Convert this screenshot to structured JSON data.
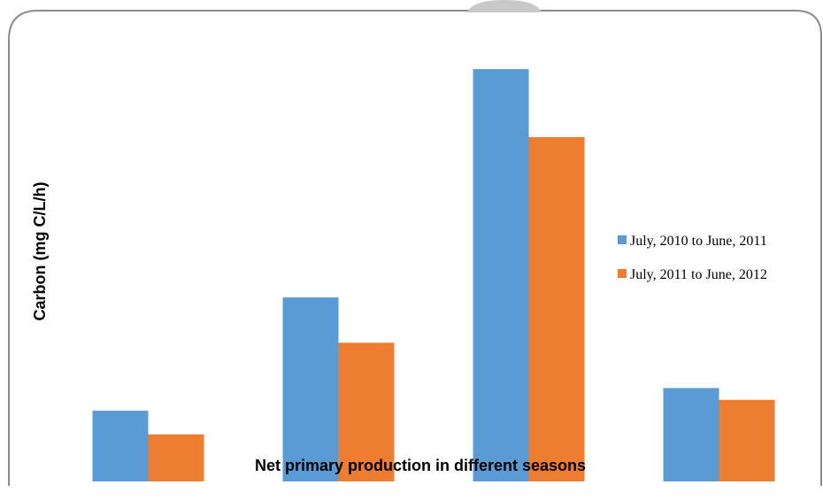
{
  "chart_data": {
    "type": "bar",
    "categories": [
      "",
      "",
      "",
      ""
    ],
    "series": [
      {
        "name": "July, 2010 to June, 2011",
        "values": [
          78,
          203,
          455,
          103
        ],
        "color": "#5b9bd5"
      },
      {
        "name": "July, 2011 to June, 2012",
        "values": [
          52,
          153,
          380,
          90
        ],
        "color": "#ed7d31"
      }
    ],
    "title": "",
    "xlabel": "Net primary production in different seasons",
    "ylabel": "Carbon (mg C/L/h)",
    "ylim": [
      0,
      500
    ],
    "grid": false,
    "legend": "right"
  }
}
